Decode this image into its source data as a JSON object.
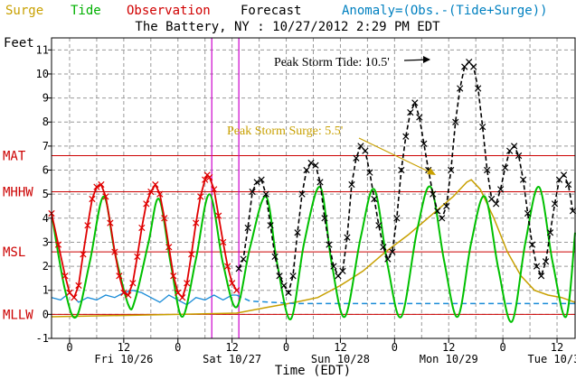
{
  "legend": [
    {
      "label": "Surge",
      "color": "#c8a000"
    },
    {
      "label": "Tide",
      "color": "#00b000"
    },
    {
      "label": "Observation",
      "color": "#d00000"
    },
    {
      "label": "Forecast",
      "color": "#000000"
    },
    {
      "label": "Anomaly=(Obs.-(Tide+Surge))",
      "color": "#0080c0"
    }
  ],
  "title": "The Battery, NY : 10/27/2012 2:29 PM EDT",
  "colors": {
    "surge": "#c8a000",
    "tide": "#00c000",
    "observation": "#e00000",
    "forecast": "#000000",
    "anomaly": "#1a8cd8",
    "datum": "#cc0000",
    "now_marker": "#cc00cc",
    "grid": "#999999"
  },
  "chart_data": {
    "type": "line",
    "title": "The Battery, NY : 10/27/2012 2:29 PM EDT",
    "xlabel": "Time (EDT)",
    "ylabel": "Feet",
    "xlim": [
      -4,
      112
    ],
    "ylim": [
      -1,
      11.5
    ],
    "yticks": [
      -1,
      0,
      1,
      2,
      3,
      4,
      5,
      6,
      7,
      8,
      9,
      10,
      11
    ],
    "xticks": [
      {
        "t": 0,
        "label": "0"
      },
      {
        "t": 12,
        "label": "12"
      },
      {
        "t": 24,
        "label": "0"
      },
      {
        "t": 36,
        "label": "12"
      },
      {
        "t": 48,
        "label": "0"
      },
      {
        "t": 60,
        "label": "12"
      },
      {
        "t": 72,
        "label": "0"
      },
      {
        "t": 84,
        "label": "12"
      },
      {
        "t": 96,
        "label": "0"
      },
      {
        "t": 108,
        "label": "12"
      }
    ],
    "day_labels": [
      {
        "t": 12,
        "label": "Fri 10/26"
      },
      {
        "t": 36,
        "label": "Sat 10/27"
      },
      {
        "t": 60,
        "label": "Sun 10/28"
      },
      {
        "t": 84,
        "label": "Mon 10/29"
      },
      {
        "t": 108,
        "label": "Tue 10/30"
      }
    ],
    "datums": [
      {
        "label": "MAT",
        "value": 6.6
      },
      {
        "label": "MHHW",
        "value": 5.1
      },
      {
        "label": "MSL",
        "value": 2.6
      },
      {
        "label": "MLLW",
        "value": 0
      }
    ],
    "now_markers": [
      31.5,
      37.5
    ],
    "series": [
      {
        "name": "Tide",
        "points": [
          [
            -4,
            4.2
          ],
          [
            -1,
            1.0
          ],
          [
            1.5,
            -0.1
          ],
          [
            4.5,
            2.2
          ],
          [
            7.5,
            4.9
          ],
          [
            10,
            2.6
          ],
          [
            13,
            0.4
          ],
          [
            14.5,
            0.6
          ],
          [
            17.5,
            3.0
          ],
          [
            19.8,
            4.8
          ],
          [
            22.5,
            2.0
          ],
          [
            25,
            -0.1
          ],
          [
            28,
            2.3
          ],
          [
            31,
            5.0
          ],
          [
            34,
            2.1
          ],
          [
            37,
            0.3
          ],
          [
            40,
            2.8
          ],
          [
            43.5,
            4.9
          ],
          [
            46,
            2.1
          ],
          [
            49,
            -0.2
          ],
          [
            52,
            3.0
          ],
          [
            55.5,
            5.3
          ],
          [
            58,
            2.2
          ],
          [
            61,
            -0.1
          ],
          [
            64.5,
            3.2
          ],
          [
            67.5,
            5.2
          ],
          [
            70.5,
            2.0
          ],
          [
            73.5,
            -0.1
          ],
          [
            77,
            3.5
          ],
          [
            80,
            5.3
          ],
          [
            83,
            2.2
          ],
          [
            86,
            -0.1
          ],
          [
            89,
            3.0
          ],
          [
            92,
            4.9
          ],
          [
            95,
            1.9
          ],
          [
            98,
            -0.3
          ],
          [
            101,
            3.0
          ],
          [
            104,
            5.3
          ],
          [
            107,
            2.2
          ],
          [
            110,
            -0.1
          ],
          [
            112,
            3.4
          ]
        ]
      },
      {
        "name": "Observation",
        "points": [
          [
            -4,
            4.2
          ],
          [
            -2.5,
            2.9
          ],
          [
            -1,
            1.6
          ],
          [
            0,
            0.9
          ],
          [
            1,
            0.7
          ],
          [
            2,
            1.2
          ],
          [
            3,
            2.5
          ],
          [
            4,
            3.7
          ],
          [
            5,
            4.8
          ],
          [
            6,
            5.3
          ],
          [
            7,
            5.4
          ],
          [
            8,
            4.9
          ],
          [
            9,
            3.8
          ],
          [
            10,
            2.6
          ],
          [
            11,
            1.6
          ],
          [
            12,
            0.9
          ],
          [
            13,
            0.8
          ],
          [
            14,
            1.3
          ],
          [
            15,
            2.4
          ],
          [
            16,
            3.6
          ],
          [
            17,
            4.6
          ],
          [
            18,
            5.1
          ],
          [
            19,
            5.4
          ],
          [
            20,
            5.0
          ],
          [
            21,
            4.0
          ],
          [
            22,
            2.8
          ],
          [
            23,
            1.6
          ],
          [
            24,
            0.9
          ],
          [
            25,
            0.7
          ],
          [
            26,
            1.3
          ],
          [
            27,
            2.5
          ],
          [
            28,
            3.8
          ],
          [
            29,
            4.9
          ],
          [
            30,
            5.6
          ],
          [
            30.5,
            5.8
          ],
          [
            31,
            5.7
          ],
          [
            32,
            5.2
          ],
          [
            33,
            4.1
          ],
          [
            34,
            3.0
          ],
          [
            35,
            2.0
          ],
          [
            36,
            1.3
          ],
          [
            37,
            1.0
          ]
        ]
      },
      {
        "name": "Forecast",
        "points": [
          [
            37.5,
            1.9
          ],
          [
            38.5,
            2.3
          ],
          [
            39.5,
            3.6
          ],
          [
            40.5,
            5.1
          ],
          [
            41.5,
            5.5
          ],
          [
            42.5,
            5.6
          ],
          [
            43.5,
            5.0
          ],
          [
            44.5,
            3.7
          ],
          [
            45.5,
            2.4
          ],
          [
            46.5,
            1.6
          ],
          [
            47.5,
            1.2
          ],
          [
            48.5,
            0.9
          ],
          [
            49.5,
            1.6
          ],
          [
            50.5,
            3.4
          ],
          [
            51.5,
            5.0
          ],
          [
            52.5,
            6.0
          ],
          [
            53.5,
            6.3
          ],
          [
            54.5,
            6.2
          ],
          [
            55.5,
            5.5
          ],
          [
            56.5,
            4.0
          ],
          [
            57.5,
            2.9
          ],
          [
            58.5,
            2.0
          ],
          [
            59.5,
            1.6
          ],
          [
            60.5,
            1.8
          ],
          [
            61.5,
            3.2
          ],
          [
            62.5,
            5.4
          ],
          [
            63.5,
            6.5
          ],
          [
            64.5,
            7.0
          ],
          [
            65.5,
            6.8
          ],
          [
            66.5,
            5.9
          ],
          [
            67.5,
            4.8
          ],
          [
            68.5,
            3.7
          ],
          [
            69.5,
            2.8
          ],
          [
            70.5,
            2.3
          ],
          [
            71.5,
            2.6
          ],
          [
            72.5,
            4.0
          ],
          [
            73.5,
            6.0
          ],
          [
            74.5,
            7.4
          ],
          [
            75.5,
            8.4
          ],
          [
            76.5,
            8.8
          ],
          [
            77.5,
            8.2
          ],
          [
            78.5,
            7.1
          ],
          [
            79.5,
            6.0
          ],
          [
            80.5,
            5.0
          ],
          [
            81.5,
            4.3
          ],
          [
            82.5,
            4.0
          ],
          [
            83.5,
            4.5
          ],
          [
            84.5,
            6.0
          ],
          [
            85.5,
            8.0
          ],
          [
            86.5,
            9.4
          ],
          [
            87.5,
            10.3
          ],
          [
            88.5,
            10.5
          ],
          [
            89.5,
            10.3
          ],
          [
            90.5,
            9.4
          ],
          [
            91.5,
            7.8
          ],
          [
            92.5,
            6.0
          ],
          [
            93.5,
            4.8
          ],
          [
            94.5,
            4.6
          ],
          [
            95.5,
            5.2
          ],
          [
            96.5,
            6.1
          ],
          [
            97.5,
            6.8
          ],
          [
            98.5,
            7.0
          ],
          [
            99.5,
            6.6
          ],
          [
            100.5,
            5.6
          ],
          [
            101.5,
            4.2
          ],
          [
            102.5,
            2.9
          ],
          [
            103.5,
            2.0
          ],
          [
            104.5,
            1.6
          ],
          [
            105.5,
            2.2
          ],
          [
            106.5,
            3.4
          ],
          [
            107.5,
            4.6
          ],
          [
            108.5,
            5.6
          ],
          [
            109.5,
            5.8
          ],
          [
            110.5,
            5.4
          ],
          [
            111.5,
            4.3
          ]
        ]
      },
      {
        "name": "Surge",
        "points": [
          [
            -4,
            -0.1
          ],
          [
            24,
            0.0
          ],
          [
            37,
            0.05
          ],
          [
            44,
            0.3
          ],
          [
            50,
            0.5
          ],
          [
            55,
            0.7
          ],
          [
            60,
            1.2
          ],
          [
            65,
            1.8
          ],
          [
            70,
            2.6
          ],
          [
            75,
            3.3
          ],
          [
            80,
            4.1
          ],
          [
            85,
            4.9
          ],
          [
            88,
            5.5
          ],
          [
            89,
            5.6
          ],
          [
            91,
            5.2
          ],
          [
            94,
            4.0
          ],
          [
            97,
            2.6
          ],
          [
            100,
            1.6
          ],
          [
            103,
            1.0
          ],
          [
            106,
            0.8
          ],
          [
            109,
            0.7
          ],
          [
            112,
            0.5
          ]
        ]
      },
      {
        "name": "Anomaly",
        "points": [
          [
            -4,
            0.7
          ],
          [
            -2,
            0.6
          ],
          [
            0,
            0.9
          ],
          [
            2,
            0.5
          ],
          [
            4,
            0.7
          ],
          [
            6,
            0.6
          ],
          [
            8,
            0.8
          ],
          [
            10,
            0.7
          ],
          [
            12,
            0.9
          ],
          [
            14,
            1.0
          ],
          [
            16,
            0.9
          ],
          [
            18,
            0.7
          ],
          [
            20,
            0.5
          ],
          [
            22,
            0.8
          ],
          [
            24,
            0.6
          ],
          [
            26,
            0.4
          ],
          [
            28,
            0.7
          ],
          [
            30,
            0.6
          ],
          [
            32,
            0.8
          ],
          [
            34,
            0.6
          ],
          [
            36,
            0.8
          ],
          [
            37,
            0.8
          ]
        ]
      },
      {
        "name": "Anomaly forecast",
        "points": [
          [
            37,
            0.8
          ],
          [
            40,
            0.55
          ],
          [
            50,
            0.45
          ],
          [
            112,
            0.45
          ]
        ]
      }
    ],
    "annotations": [
      {
        "text": "Peak Storm Tide: 10.5'",
        "color": "#000000"
      },
      {
        "text": "Peak Storm Surge: 5.5'",
        "color": "#c8a000"
      }
    ]
  }
}
